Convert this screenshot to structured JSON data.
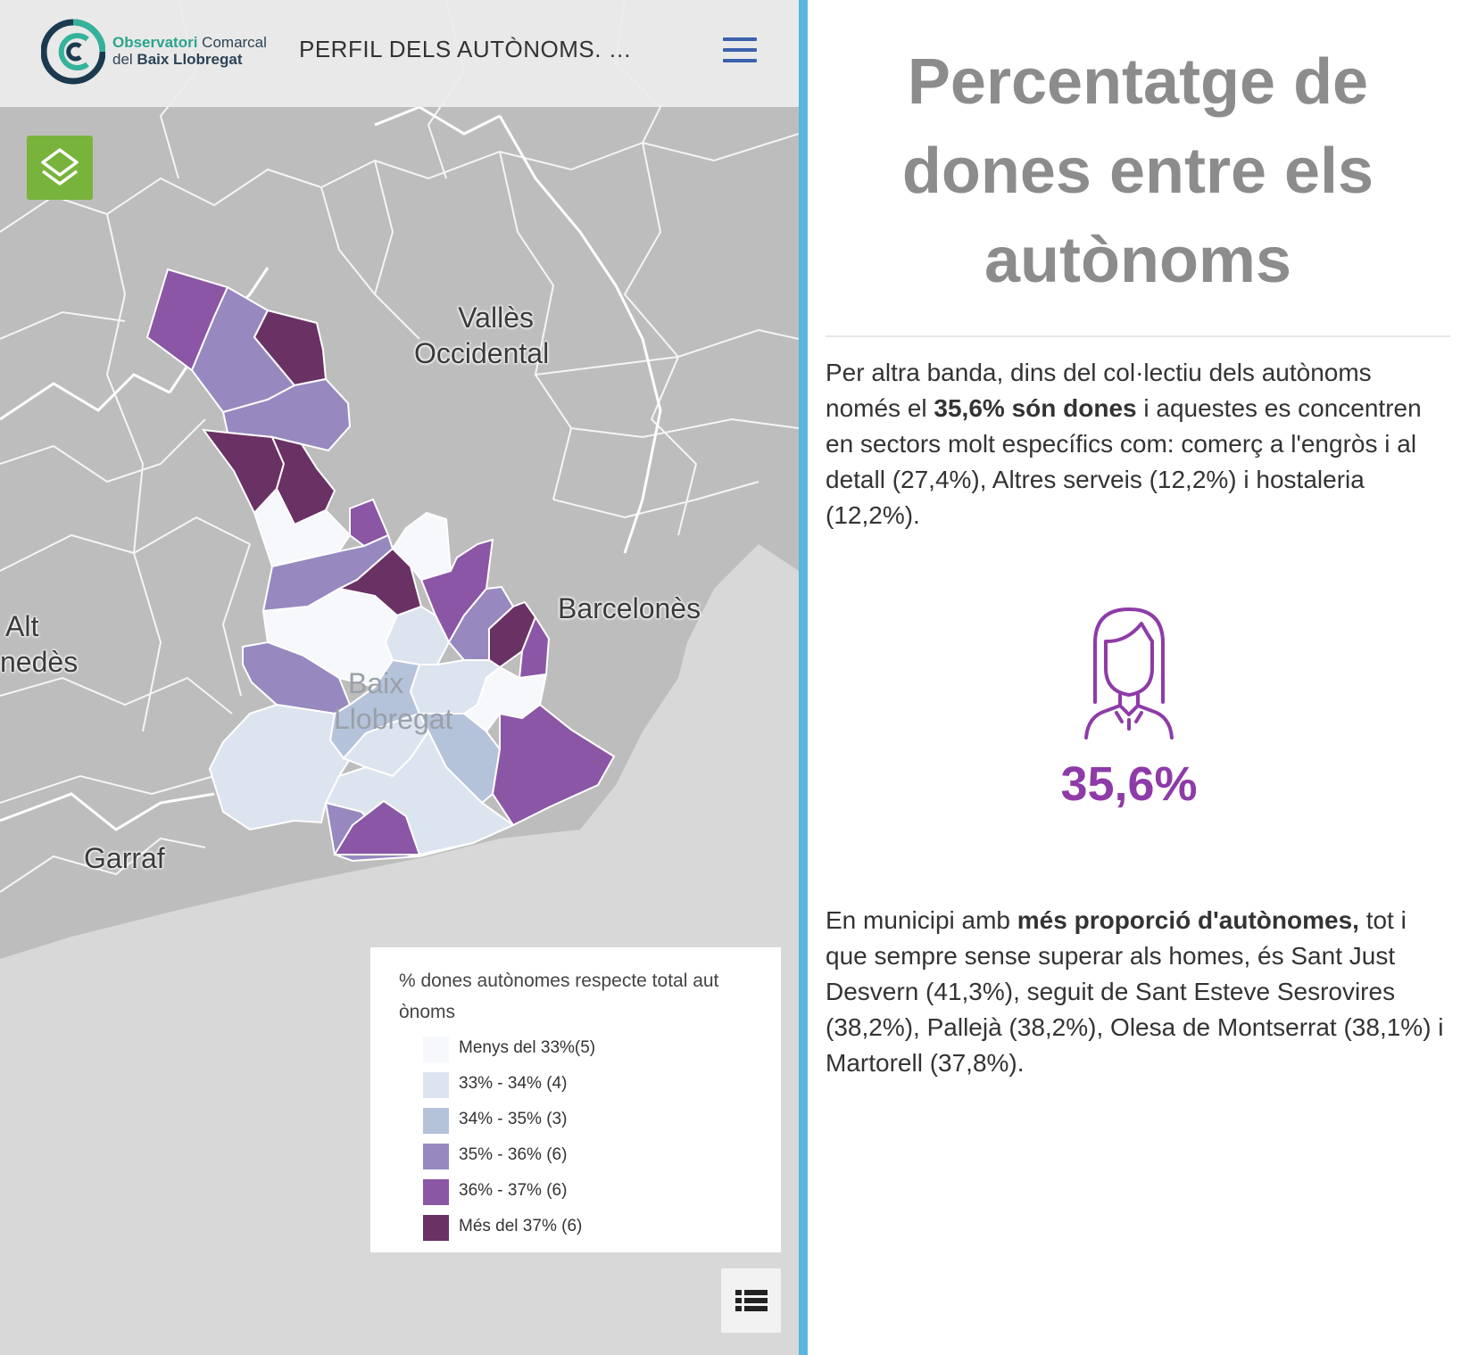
{
  "header": {
    "logo": {
      "line1_a": "Observatori",
      "line1_b": "Comarcal",
      "line2_a": "del",
      "line2_b": "Baix Llobregat"
    },
    "story_title": "PERFIL DELS AUTÒNOMS. DO...",
    "menu_icon": "hamburger-icon",
    "brand_color": "#3a61ad"
  },
  "map": {
    "layers_icon": "layers-icon",
    "list_icon": "list-icon",
    "region_labels": {
      "valles_1": "Vallès",
      "valles_2": "Occidental",
      "barcelones": "Barcelonès",
      "alt_1": "Alt",
      "alt_2": "nedès",
      "baix_1": "Baix",
      "baix_2": "Llobregat",
      "garraf": "Garraf"
    },
    "legend": {
      "title": "% dones autònomes respecte total aut ònoms",
      "items": [
        {
          "label": "Menys del 33%(5)",
          "color": "#f6f8fb"
        },
        {
          "label": "33% - 34% (4)",
          "color": "#dce4ef"
        },
        {
          "label": "34% - 35% (3)",
          "color": "#b4c3da"
        },
        {
          "label": "35% - 36% (6)",
          "color": "#9789bf"
        },
        {
          "label": "36% - 37% (6)",
          "color": "#8b56a5"
        },
        {
          "label": "Més del 37% (6)",
          "color": "#6a3165"
        }
      ]
    }
  },
  "story": {
    "heading": "Percentatge de dones entre els autònoms",
    "p1": {
      "a": "Per altra banda, dins del col·lectiu dels autònoms només el ",
      "b": "35,6% són dones",
      "c": " i aquestes es concentren en sectors molt específics com: comerç a l'engròs i al detall (27,4%), Altres serveis (12,2%) i hostaleria (12,2%)."
    },
    "stat_icon": "woman-icon",
    "stat_value": "35,6%",
    "stat_color": "#8e3ba8",
    "p2": {
      "a": "En municipi amb ",
      "b": "més proporció d'autònomes,",
      "c": " tot i que sempre sense superar als homes, és Sant Just Desvern (41,3%), seguit de Sant Esteve Sesrovires (38,2%), Pallejà (38,2%), Olesa de Montserrat (38,1%) i Martorell (37,8%)."
    }
  }
}
